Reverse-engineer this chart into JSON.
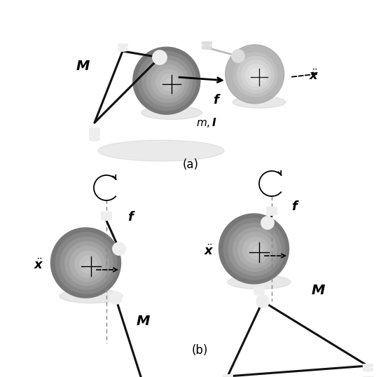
{
  "fig_width": 5.44,
  "fig_height": 5.38,
  "dpi": 100,
  "bg_color": "#ffffff",
  "sphere_main_color": "#aaaaaa",
  "sphere_ghost_color": "#dddddd",
  "sphere_b_color": "#aaaaaa",
  "joint_color": "#eeeeee",
  "joint_edge": "#333333",
  "rod_color": "#111111",
  "ghost_rod_color": "#bbbbbb",
  "axis_color": "#888888",
  "ellipse_color": "#555555"
}
